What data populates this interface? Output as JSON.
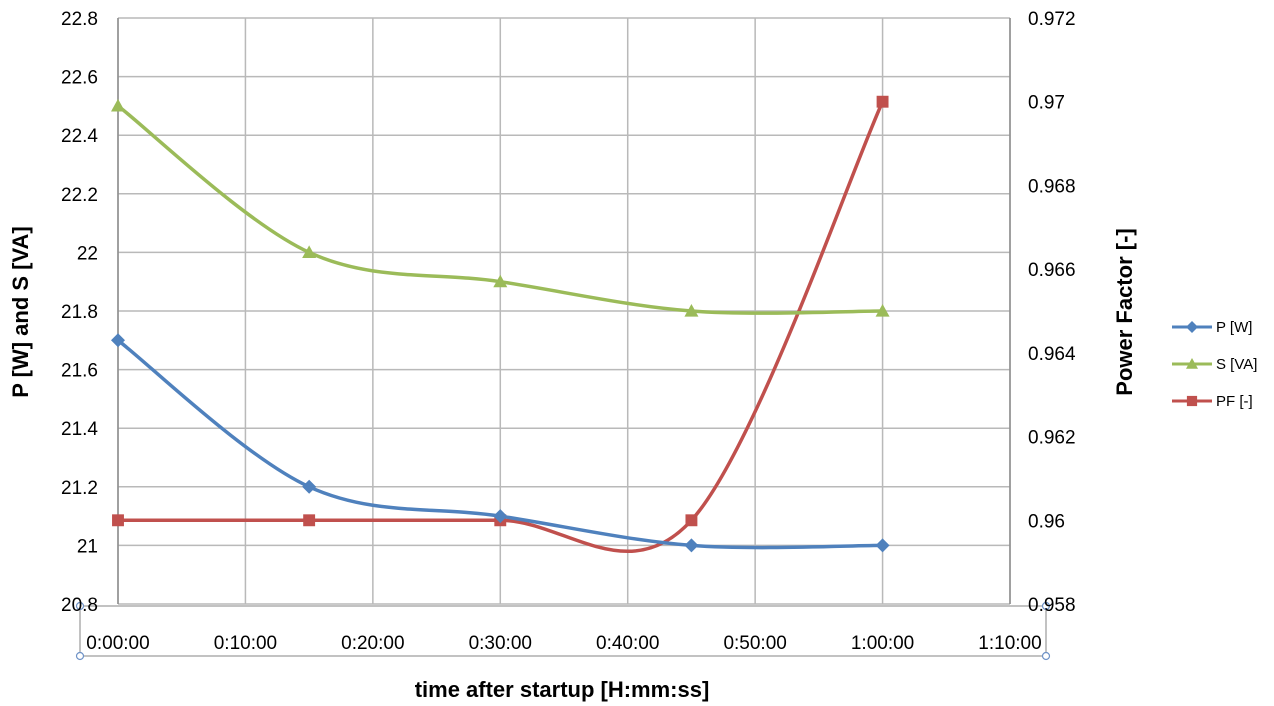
{
  "chart_data": {
    "type": "line",
    "title": "",
    "xlabel": "time after startup [H:mm:ss]",
    "ylabel_left": "P [W] and S [VA]",
    "ylabel_right": "Power Factor [-]",
    "x_ticks": [
      "0:00:00",
      "0:10:00",
      "0:20:00",
      "0:30:00",
      "0:40:00",
      "0:50:00",
      "1:00:00",
      "1:10:00"
    ],
    "x_range_minutes": [
      0,
      70
    ],
    "y_left_ticks": [
      "20.8",
      "21",
      "21.2",
      "21.4",
      "21.6",
      "21.8",
      "22",
      "22.2",
      "22.4",
      "22.6",
      "22.8"
    ],
    "y_left_range": [
      20.8,
      22.8
    ],
    "y_right_ticks": [
      "0.958",
      "0.96",
      "0.962",
      "0.964",
      "0.966",
      "0.968",
      "0.97",
      "0.972"
    ],
    "y_right_range": [
      0.958,
      0.972
    ],
    "grid": true,
    "smooth": true,
    "legend_position": "right",
    "x": [
      "0:00:00",
      "0:15:00",
      "0:30:00",
      "0:45:00",
      "1:00:00"
    ],
    "x_minutes": [
      0,
      15,
      30,
      45,
      60
    ],
    "series": [
      {
        "name": "P [W]",
        "axis": "left",
        "marker": "diamond",
        "color": "#4f81bd",
        "values": [
          21.7,
          21.2,
          21.1,
          21.0,
          21.0
        ]
      },
      {
        "name": "S [VA]",
        "axis": "left",
        "marker": "triangle",
        "color": "#9bbb59",
        "values": [
          22.5,
          22.0,
          21.9,
          21.8,
          21.8
        ]
      },
      {
        "name": "PF [-]",
        "axis": "right",
        "marker": "square",
        "color": "#c0504d",
        "values": [
          0.96,
          0.96,
          0.96,
          0.96,
          0.97
        ]
      }
    ]
  }
}
